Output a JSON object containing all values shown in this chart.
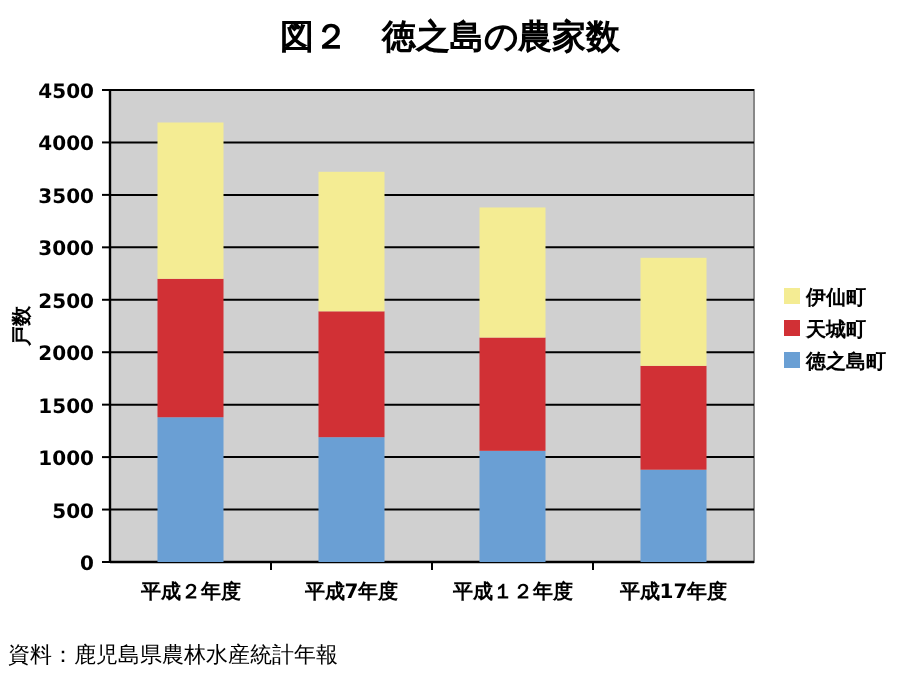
{
  "chart_data": {
    "type": "bar",
    "stacked": true,
    "title": "図２　徳之島の農家数",
    "ylabel": "戸数",
    "categories": [
      "平成２年度",
      "平成7年度",
      "平成１２年度",
      "平成17年度"
    ],
    "series": [
      {
        "name": "徳之島町",
        "color": "#6a9fd4",
        "values": [
          1380,
          1190,
          1060,
          880
        ]
      },
      {
        "name": "天城町",
        "color": "#d13035",
        "values": [
          1320,
          1200,
          1080,
          990
        ]
      },
      {
        "name": "伊仙町",
        "color": "#f4ec93",
        "values": [
          1490,
          1330,
          1240,
          1030
        ]
      }
    ],
    "ylim": [
      0,
      4500
    ],
    "yticks": [
      0,
      500,
      1000,
      1500,
      2000,
      2500,
      3000,
      3500,
      4000,
      4500
    ],
    "grid": "y",
    "legend": "right",
    "annotations": [
      "資料：鹿児島県農林水産統計年報"
    ]
  }
}
